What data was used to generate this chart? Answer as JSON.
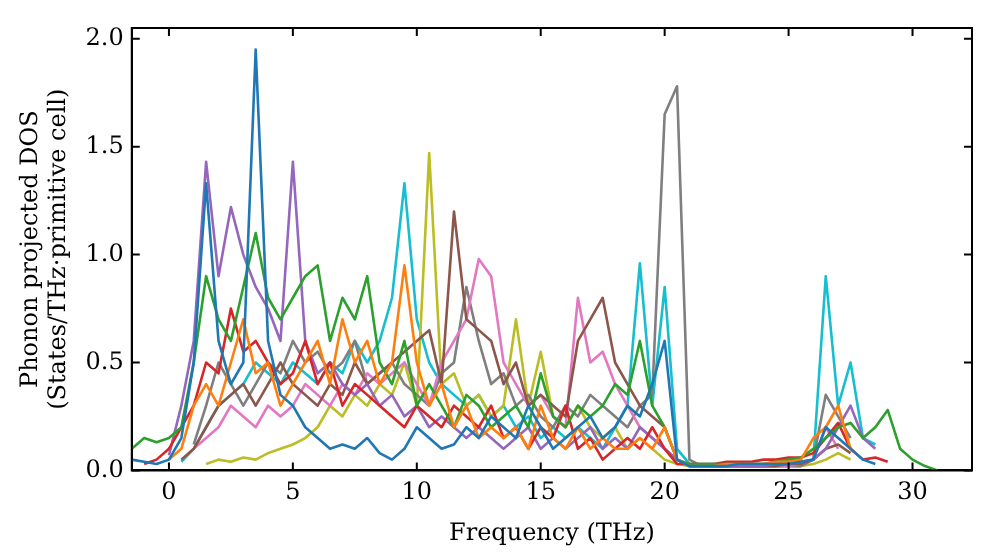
{
  "chart_data": {
    "type": "line",
    "xlabel": "Frequency (THz)",
    "ylabel": "Phonon projected DOS\n(States/THz·primitive cell)",
    "x": [
      -1.5,
      -1,
      -0.5,
      0,
      0.5,
      1,
      1.5,
      2,
      2.5,
      3,
      3.5,
      4,
      4.5,
      5,
      5.5,
      6,
      6.5,
      7,
      7.5,
      8,
      8.5,
      9,
      9.5,
      10,
      10.5,
      11,
      11.5,
      12,
      12.5,
      13,
      13.5,
      14,
      14.5,
      15,
      15.5,
      16,
      16.5,
      17,
      17.5,
      18,
      18.5,
      19,
      19.5,
      20,
      20.5,
      21,
      21.5,
      22,
      22.5,
      23,
      23.5,
      24,
      24.5,
      25,
      25.5,
      26,
      26.5,
      27,
      27.5,
      28,
      28.5,
      29,
      29.5,
      30,
      30.5,
      31
    ],
    "series": [
      {
        "color": "#1f77b4",
        "values": [
          0.05,
          0.04,
          0.03,
          0.05,
          0.15,
          0.5,
          1.33,
          0.6,
          0.4,
          0.5,
          1.95,
          0.6,
          0.35,
          0.3,
          0.2,
          0.15,
          0.1,
          0.12,
          0.1,
          0.15,
          0.08,
          0.05,
          0.1,
          0.2,
          0.15,
          0.1,
          0.12,
          0.2,
          0.15,
          0.25,
          0.2,
          0.15,
          0.3,
          0.2,
          0.1,
          0.15,
          0.2,
          0.25,
          0.15,
          0.2,
          0.3,
          0.25,
          0.4,
          0.6,
          0.05,
          0.02,
          0.02,
          0.02,
          0.02,
          0.03,
          0.03,
          0.03,
          0.03,
          0.03,
          0.04,
          0.05,
          0.2,
          0.15,
          0.1,
          0.05,
          0.03,
          null,
          null,
          null,
          null,
          null
        ]
      },
      {
        "color": "#ff7f0e",
        "values": [
          null,
          null,
          null,
          0.05,
          0.1,
          0.3,
          0.4,
          0.3,
          0.5,
          0.7,
          0.45,
          0.5,
          0.3,
          0.4,
          0.5,
          0.6,
          0.4,
          0.7,
          0.5,
          0.6,
          0.4,
          0.5,
          0.95,
          0.5,
          0.3,
          0.4,
          0.2,
          0.3,
          0.15,
          0.2,
          0.15,
          0.2,
          0.1,
          0.3,
          0.15,
          0.1,
          0.2,
          0.1,
          0.15,
          0.1,
          0.1,
          0.15,
          0.1,
          0.2,
          0.05,
          0.02,
          0.02,
          0.02,
          0.03,
          0.03,
          0.03,
          0.03,
          0.04,
          0.04,
          0.05,
          0.15,
          0.2,
          0.3,
          0.1,
          0.05,
          null,
          null,
          null,
          null,
          null,
          null
        ]
      },
      {
        "color": "#2ca02c",
        "values": [
          0.1,
          0.15,
          0.13,
          0.15,
          0.2,
          0.5,
          0.9,
          0.7,
          0.6,
          0.85,
          1.1,
          0.8,
          0.7,
          0.8,
          0.9,
          0.95,
          0.6,
          0.8,
          0.7,
          0.9,
          0.5,
          0.4,
          0.6,
          0.3,
          0.4,
          0.3,
          0.2,
          0.35,
          0.3,
          0.2,
          0.25,
          0.3,
          0.2,
          0.45,
          0.25,
          0.2,
          0.3,
          0.25,
          0.3,
          0.4,
          0.35,
          0.6,
          0.3,
          0.2,
          0.05,
          0.03,
          0.03,
          0.03,
          0.03,
          0.03,
          0.03,
          0.03,
          0.04,
          0.05,
          0.06,
          0.1,
          0.15,
          0.2,
          0.22,
          0.15,
          0.2,
          0.28,
          0.1,
          0.05,
          0.02,
          0.0
        ]
      },
      {
        "color": "#d62728",
        "values": [
          null,
          0.03,
          0.05,
          0.1,
          0.2,
          0.3,
          0.5,
          0.45,
          0.75,
          0.55,
          0.6,
          0.5,
          0.4,
          0.45,
          0.6,
          0.4,
          0.5,
          0.3,
          0.4,
          0.35,
          0.3,
          0.25,
          0.2,
          0.3,
          0.25,
          0.2,
          0.3,
          0.25,
          0.2,
          0.3,
          0.15,
          0.2,
          0.1,
          0.2,
          0.15,
          0.3,
          0.1,
          0.15,
          0.05,
          0.1,
          0.15,
          0.1,
          0.2,
          0.1,
          0.03,
          0.03,
          0.03,
          0.03,
          0.04,
          0.04,
          0.04,
          0.05,
          0.05,
          0.06,
          0.06,
          0.08,
          0.15,
          0.22,
          0.1,
          0.05,
          0.06,
          0.04,
          null,
          null,
          null,
          null
        ]
      },
      {
        "color": "#9467bd",
        "values": [
          null,
          null,
          null,
          0.07,
          0.3,
          0.6,
          1.43,
          0.9,
          1.22,
          1.0,
          0.85,
          0.75,
          0.6,
          1.43,
          0.6,
          0.45,
          0.5,
          0.4,
          0.35,
          0.4,
          0.3,
          0.35,
          0.25,
          0.3,
          0.2,
          0.25,
          0.2,
          0.15,
          0.2,
          0.15,
          0.1,
          0.15,
          0.2,
          0.1,
          0.15,
          0.1,
          0.15,
          0.2,
          0.1,
          0.15,
          0.1,
          0.2,
          0.15,
          0.1,
          0.05,
          0.02,
          0.02,
          0.02,
          0.02,
          0.02,
          0.02,
          0.02,
          0.03,
          0.03,
          0.04,
          0.05,
          0.1,
          0.2,
          0.3,
          0.15,
          0.1,
          null,
          null,
          null,
          null,
          null
        ]
      },
      {
        "color": "#8c564b",
        "values": [
          null,
          null,
          null,
          null,
          0.05,
          0.1,
          0.2,
          0.3,
          0.35,
          0.4,
          0.3,
          0.4,
          0.5,
          0.4,
          0.35,
          0.3,
          0.4,
          0.35,
          0.5,
          0.4,
          0.45,
          0.5,
          0.55,
          0.6,
          0.65,
          0.4,
          1.2,
          0.7,
          0.65,
          0.6,
          0.4,
          0.5,
          0.3,
          0.35,
          0.3,
          0.25,
          0.6,
          0.7,
          0.8,
          0.5,
          0.4,
          0.3,
          0.25,
          0.2,
          0.05,
          0.02,
          0.02,
          0.02,
          0.02,
          0.02,
          0.02,
          0.02,
          0.02,
          0.03,
          0.03,
          0.05,
          0.1,
          0.12,
          0.08,
          null,
          null,
          null,
          null,
          null,
          null,
          null
        ]
      },
      {
        "color": "#e377c2",
        "values": [
          null,
          null,
          null,
          null,
          null,
          0.1,
          0.15,
          0.2,
          0.3,
          0.25,
          0.2,
          0.3,
          0.25,
          0.3,
          0.4,
          0.35,
          0.3,
          0.4,
          0.35,
          0.45,
          0.4,
          0.45,
          0.5,
          0.4,
          0.3,
          0.5,
          0.6,
          0.7,
          0.98,
          0.9,
          0.5,
          0.4,
          0.3,
          0.35,
          0.25,
          0.2,
          0.8,
          0.5,
          0.55,
          0.4,
          0.3,
          0.2,
          0.15,
          0.1,
          0.05,
          0.02,
          0.02,
          0.02,
          0.02,
          0.02,
          0.02,
          0.02,
          0.02,
          0.02,
          0.03,
          0.05,
          0.2,
          0.1,
          null,
          null,
          null,
          null,
          null,
          null,
          null,
          null
        ]
      },
      {
        "color": "#7f7f7f",
        "values": [
          null,
          null,
          null,
          null,
          null,
          0.12,
          0.3,
          0.5,
          0.4,
          0.3,
          0.4,
          0.5,
          0.45,
          0.6,
          0.5,
          0.55,
          0.45,
          0.5,
          0.6,
          0.4,
          0.45,
          0.5,
          0.4,
          0.35,
          0.3,
          0.45,
          0.5,
          0.85,
          0.6,
          0.4,
          0.45,
          0.3,
          0.35,
          0.25,
          0.2,
          0.3,
          0.25,
          0.35,
          0.3,
          0.25,
          0.2,
          0.3,
          0.35,
          1.65,
          1.78,
          0.05,
          0.02,
          0.02,
          0.02,
          0.02,
          0.02,
          0.02,
          0.02,
          0.02,
          0.02,
          0.05,
          0.35,
          0.25,
          0.15,
          null,
          null,
          null,
          null,
          null,
          null,
          null
        ]
      },
      {
        "color": "#bcbd22",
        "values": [
          null,
          null,
          null,
          null,
          null,
          null,
          0.03,
          0.05,
          0.04,
          0.06,
          0.05,
          0.08,
          0.1,
          0.12,
          0.15,
          0.2,
          0.3,
          0.25,
          0.35,
          0.3,
          0.4,
          0.35,
          0.5,
          0.3,
          1.47,
          0.4,
          0.45,
          0.3,
          0.35,
          0.25,
          0.3,
          0.7,
          0.3,
          0.55,
          0.25,
          0.2,
          0.3,
          0.2,
          0.15,
          0.2,
          0.1,
          0.15,
          0.1,
          0.05,
          0.03,
          0.02,
          0.02,
          0.02,
          0.02,
          0.02,
          0.02,
          0.02,
          0.02,
          0.02,
          0.02,
          0.03,
          0.05,
          0.08,
          0.05,
          null,
          null,
          null,
          null,
          null,
          null,
          null
        ]
      },
      {
        "color": "#17becf",
        "values": [
          null,
          null,
          null,
          null,
          0.04,
          0.1,
          0.2,
          0.3,
          0.35,
          0.4,
          0.5,
          0.45,
          0.4,
          0.5,
          0.45,
          0.4,
          0.5,
          0.45,
          0.6,
          0.5,
          0.6,
          0.8,
          1.33,
          0.7,
          0.5,
          0.4,
          0.35,
          0.3,
          0.35,
          0.25,
          0.3,
          0.2,
          0.25,
          0.15,
          0.2,
          0.15,
          0.2,
          0.15,
          0.1,
          0.2,
          0.3,
          0.96,
          0.3,
          0.85,
          0.1,
          0.03,
          0.03,
          0.03,
          0.03,
          0.03,
          0.03,
          0.03,
          0.03,
          0.03,
          0.03,
          0.05,
          0.9,
          0.3,
          0.5,
          0.15,
          0.12,
          null,
          null,
          null,
          null,
          null
        ]
      }
    ],
    "xlim": [
      -1.5,
      32.4
    ],
    "xticks": [
      0,
      5,
      10,
      15,
      20,
      25,
      30
    ],
    "ylim": [
      0,
      2.05
    ],
    "yticks": [
      {
        "value": 0,
        "label": "0.0"
      },
      {
        "value": 0.5,
        "label": "0.5"
      },
      {
        "value": 1,
        "label": "1.0"
      },
      {
        "value": 1.5,
        "label": "1.5"
      },
      {
        "value": 2,
        "label": "2.0"
      }
    ],
    "grid": false,
    "legend": false,
    "marker": "none",
    "line_style": "solid"
  }
}
